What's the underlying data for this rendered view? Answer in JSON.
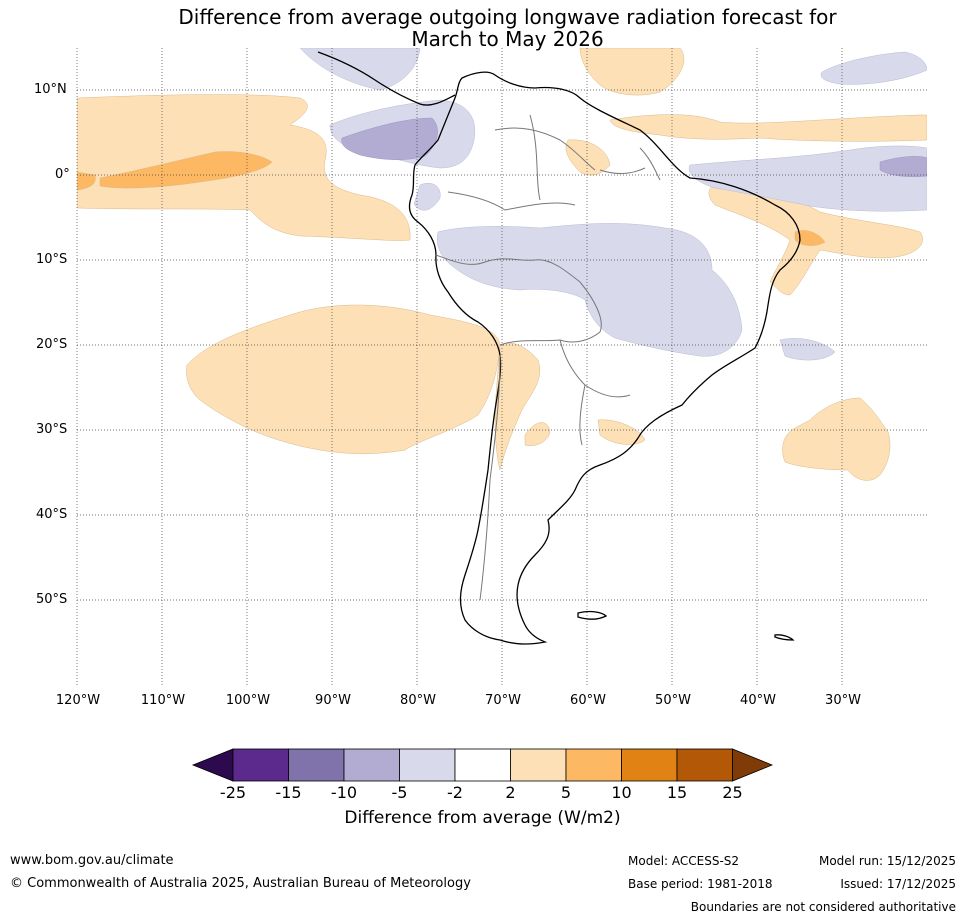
{
  "title": {
    "line1": "Difference from average outgoing longwave radiation forecast for",
    "line2": "March to May 2026"
  },
  "map": {
    "lat_labels": [
      "10°N",
      "0°",
      "10°S",
      "20°S",
      "30°S",
      "40°S",
      "50°S"
    ],
    "lon_labels": [
      "120°W",
      "110°W",
      "100°W",
      "90°W",
      "80°W",
      "70°W",
      "60°W",
      "50°W",
      "40°W",
      "30°W"
    ]
  },
  "colorbar": {
    "ticks": [
      "-25",
      "-15",
      "-10",
      "-5",
      "-2",
      "2",
      "5",
      "10",
      "15",
      "25"
    ],
    "colors": [
      "#2d0a4e",
      "#5b2a8c",
      "#8073ac",
      "#b2abd2",
      "#d8daeb",
      "#ffffff",
      "#fee0b6",
      "#fdb863",
      "#e08214",
      "#b35806",
      "#7f3b08"
    ],
    "label": "Difference from average (W/m2)"
  },
  "footer": {
    "website": "www.bom.gov.au/climate",
    "copyright": "© Commonwealth of Australia 2025, Australian Bureau of Meteorology",
    "model": "Model: ACCESS-S2",
    "base_period": "Base period: 1981-2018",
    "model_run": "Model run: 15/12/2025",
    "issued": "Issued: 17/12/2025",
    "boundaries_note": "Boundaries are not considered authoritative"
  }
}
